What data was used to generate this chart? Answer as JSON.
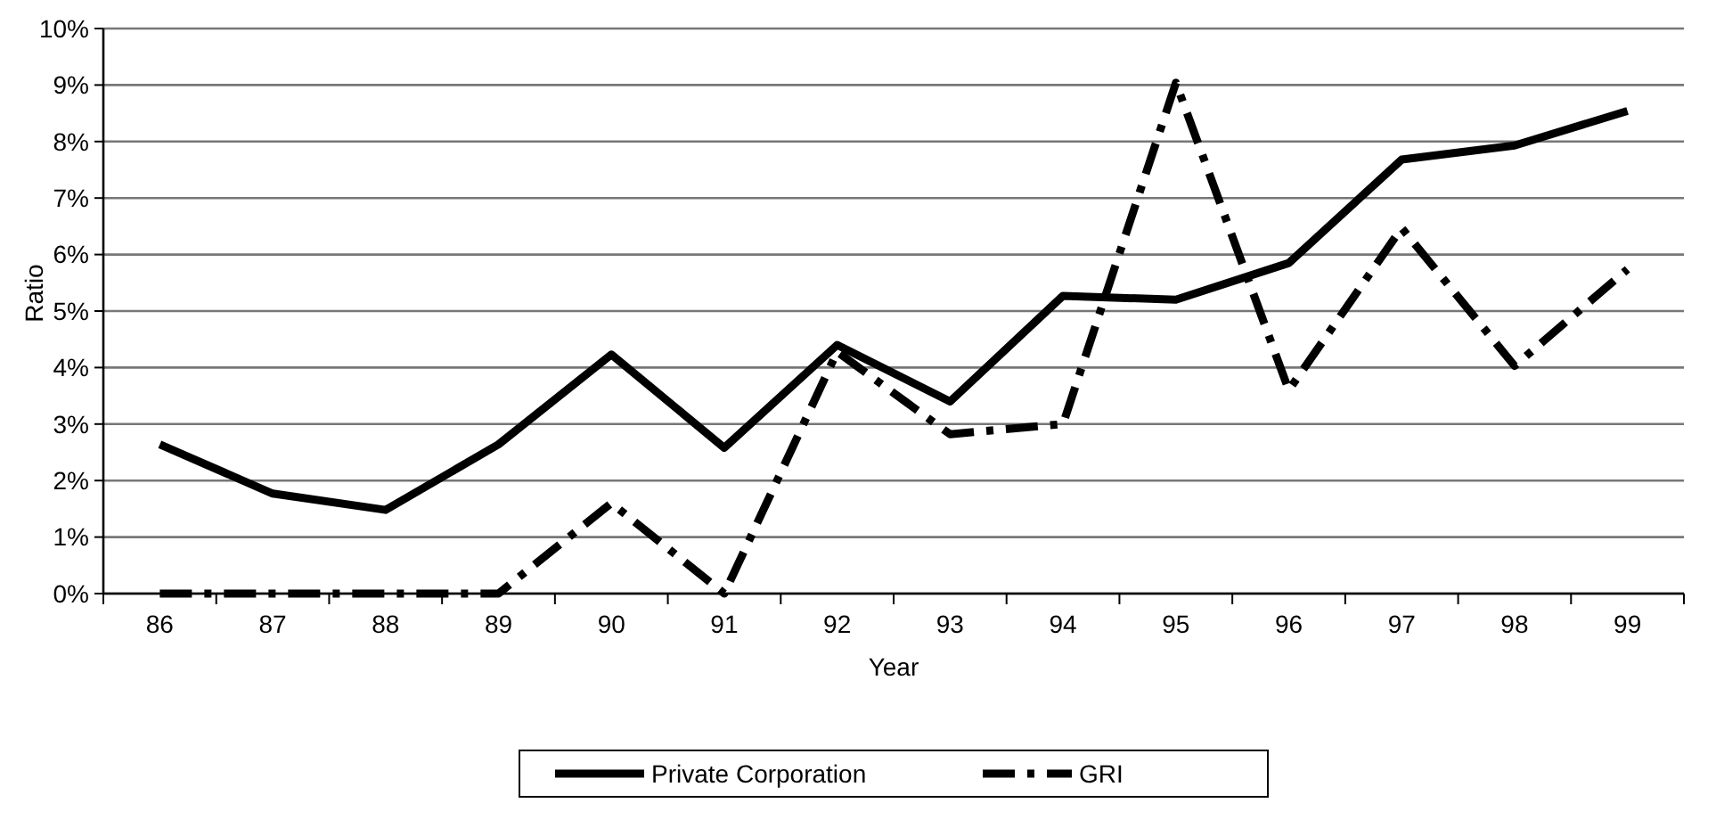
{
  "chart_data": {
    "type": "line",
    "xlabel": "Year",
    "ylabel": "Ratio",
    "categories": [
      "86",
      "87",
      "88",
      "89",
      "90",
      "91",
      "92",
      "93",
      "94",
      "95",
      "96",
      "97",
      "98",
      "99"
    ],
    "series": [
      {
        "name": "Private Corporation",
        "color": "#000000",
        "line_style": "solid",
        "values": [
          2.64,
          1.77,
          1.48,
          2.64,
          4.23,
          2.58,
          4.4,
          3.4,
          5.27,
          5.2,
          5.85,
          7.68,
          7.93,
          8.54
        ]
      },
      {
        "name": "GRI",
        "color": "#000000",
        "line_style": "dashed",
        "values": [
          0,
          0,
          0,
          0,
          1.6,
          0,
          4.28,
          2.82,
          3.0,
          9.04,
          3.6,
          6.47,
          4.03,
          5.74
        ]
      }
    ],
    "ylim": [
      0,
      10
    ],
    "yticks": [
      {
        "value": 0,
        "label": "0%"
      },
      {
        "value": 1,
        "label": "1%"
      },
      {
        "value": 2,
        "label": "2%"
      },
      {
        "value": 3,
        "label": "3%"
      },
      {
        "value": 4,
        "label": "4%"
      },
      {
        "value": 5,
        "label": "5%"
      },
      {
        "value": 6,
        "label": "6%"
      },
      {
        "value": 7,
        "label": "7%"
      },
      {
        "value": 8,
        "label": "8%"
      },
      {
        "value": 9,
        "label": "9%"
      },
      {
        "value": 10,
        "label": "10%"
      }
    ],
    "grid": "y",
    "legend": "bottom",
    "marker": "none"
  }
}
